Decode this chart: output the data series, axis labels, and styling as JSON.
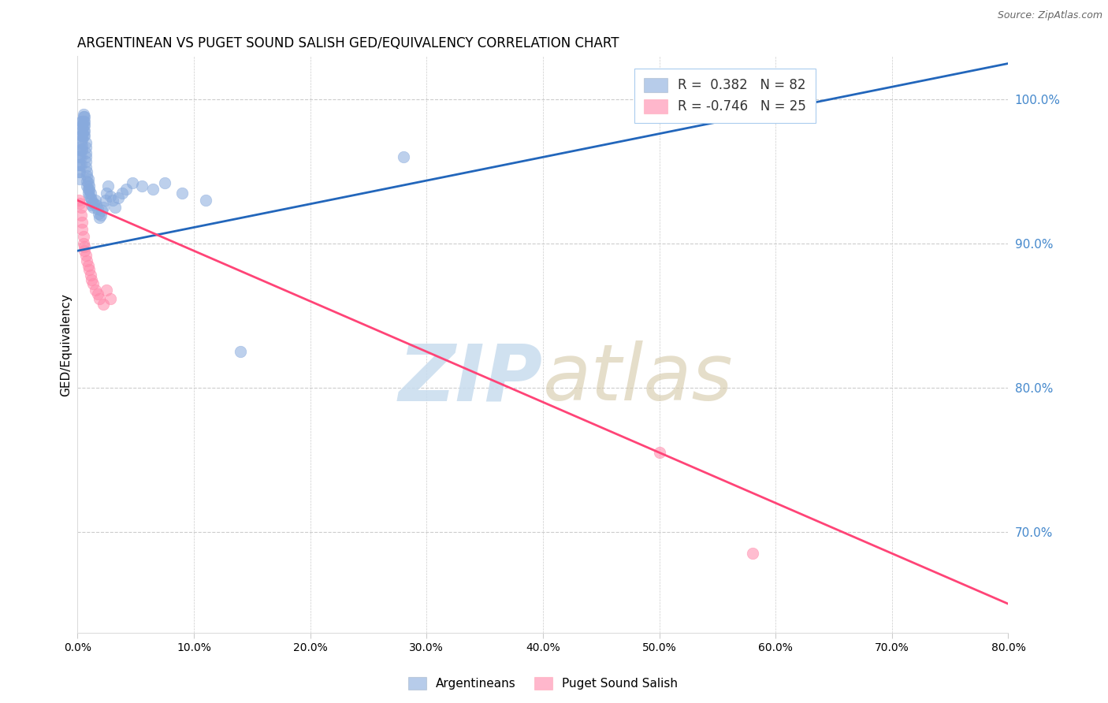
{
  "title": "ARGENTINEAN VS PUGET SOUND SALISH GED/EQUIVALENCY CORRELATION CHART",
  "source": "Source: ZipAtlas.com",
  "ylabel": "GED/Equivalency",
  "right_yticks": [
    0.7,
    0.8,
    0.9,
    1.0
  ],
  "right_ytick_labels": [
    "70.0%",
    "80.0%",
    "90.0%",
    "100.0%"
  ],
  "xlim": [
    0.0,
    0.8
  ],
  "ylim": [
    0.63,
    1.03
  ],
  "blue_R": 0.382,
  "blue_N": 82,
  "pink_R": -0.746,
  "pink_N": 25,
  "blue_color": "#88AADD",
  "pink_color": "#FF88AA",
  "blue_line_color": "#2266BB",
  "pink_line_color": "#FF4477",
  "watermark_zip": "ZIP",
  "watermark_atlas": "atlas",
  "watermark_color": "#C8DCEE",
  "background_color": "#FFFFFF",
  "grid_color": "#CCCCCC",
  "right_axis_color": "#4488CC",
  "blue_scatter_x": [
    0.001,
    0.001,
    0.001,
    0.002,
    0.002,
    0.002,
    0.002,
    0.002,
    0.003,
    0.003,
    0.003,
    0.003,
    0.003,
    0.003,
    0.003,
    0.004,
    0.004,
    0.004,
    0.004,
    0.004,
    0.004,
    0.004,
    0.005,
    0.005,
    0.005,
    0.005,
    0.005,
    0.005,
    0.006,
    0.006,
    0.006,
    0.006,
    0.006,
    0.007,
    0.007,
    0.007,
    0.007,
    0.007,
    0.007,
    0.008,
    0.008,
    0.008,
    0.008,
    0.009,
    0.009,
    0.009,
    0.009,
    0.01,
    0.01,
    0.01,
    0.011,
    0.011,
    0.012,
    0.012,
    0.013,
    0.013,
    0.014,
    0.015,
    0.016,
    0.017,
    0.018,
    0.019,
    0.02,
    0.021,
    0.022,
    0.024,
    0.025,
    0.026,
    0.028,
    0.03,
    0.032,
    0.035,
    0.038,
    0.042,
    0.047,
    0.055,
    0.065,
    0.075,
    0.09,
    0.11,
    0.14,
    0.28
  ],
  "blue_scatter_y": [
    0.96,
    0.955,
    0.95,
    0.965,
    0.96,
    0.955,
    0.95,
    0.945,
    0.985,
    0.98,
    0.975,
    0.97,
    0.965,
    0.96,
    0.955,
    0.985,
    0.982,
    0.978,
    0.975,
    0.972,
    0.968,
    0.965,
    0.99,
    0.988,
    0.985,
    0.982,
    0.978,
    0.975,
    0.988,
    0.985,
    0.982,
    0.978,
    0.975,
    0.97,
    0.967,
    0.963,
    0.96,
    0.957,
    0.953,
    0.95,
    0.947,
    0.943,
    0.94,
    0.945,
    0.942,
    0.938,
    0.935,
    0.94,
    0.937,
    0.933,
    0.935,
    0.932,
    0.93,
    0.927,
    0.928,
    0.925,
    0.928,
    0.93,
    0.927,
    0.924,
    0.921,
    0.918,
    0.92,
    0.923,
    0.925,
    0.93,
    0.935,
    0.94,
    0.933,
    0.93,
    0.925,
    0.932,
    0.935,
    0.938,
    0.942,
    0.94,
    0.938,
    0.942,
    0.935,
    0.93,
    0.825,
    0.96
  ],
  "pink_scatter_x": [
    0.001,
    0.002,
    0.003,
    0.003,
    0.004,
    0.004,
    0.005,
    0.005,
    0.006,
    0.006,
    0.007,
    0.008,
    0.009,
    0.01,
    0.011,
    0.012,
    0.013,
    0.015,
    0.017,
    0.019,
    0.022,
    0.025,
    0.028,
    0.5,
    0.58
  ],
  "pink_scatter_y": [
    0.93,
    0.928,
    0.925,
    0.92,
    0.915,
    0.91,
    0.905,
    0.9,
    0.898,
    0.895,
    0.892,
    0.888,
    0.885,
    0.882,
    0.878,
    0.875,
    0.872,
    0.868,
    0.865,
    0.862,
    0.858,
    0.868,
    0.862,
    0.755,
    0.685
  ],
  "blue_line_x": [
    0.0,
    0.8
  ],
  "blue_line_y": [
    0.895,
    1.025
  ],
  "pink_line_x": [
    0.0,
    0.8
  ],
  "pink_line_y": [
    0.93,
    0.65
  ]
}
